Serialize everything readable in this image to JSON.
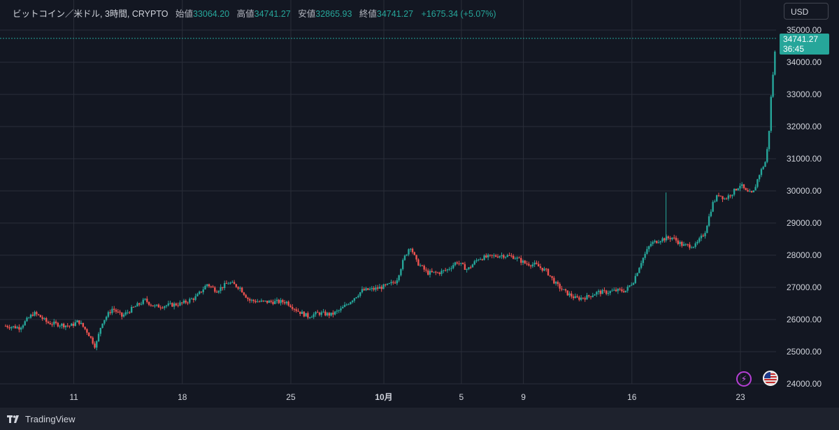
{
  "header": {
    "symbol": "ビットコイン／米ドル, 3時間, CRYPTO",
    "open_label": "始値",
    "open": "33064.20",
    "high_label": "高値",
    "high": "34741.27",
    "low_label": "安値",
    "low": "32865.93",
    "close_label": "終値",
    "close": "34741.27",
    "change": "+1675.34 (+5.07%)"
  },
  "currency_button": "USD",
  "last_price": {
    "price": "34741.27",
    "countdown": "36:45"
  },
  "colors": {
    "up": "#26a69a",
    "down": "#ef5350",
    "background": "#131722",
    "grid": "#2a2e39"
  },
  "branding": "TradingView",
  "icons": [
    "tradingview-logo-icon",
    "lightning-icon",
    "us-flag-icon"
  ],
  "chart_data": {
    "type": "candlestick",
    "title": "",
    "xlabel": "",
    "ylabel": "",
    "ylim": [
      24000,
      35000
    ],
    "yticks": [
      "35000.00",
      "34000.00",
      "33000.00",
      "32000.00",
      "31000.00",
      "30000.00",
      "29000.00",
      "28000.00",
      "27000.00",
      "26000.00",
      "25000.00",
      "24000.00"
    ],
    "xticks": [
      {
        "label": "11",
        "day": 11
      },
      {
        "label": "18",
        "day": 18
      },
      {
        "label": "25",
        "day": 25
      },
      {
        "label": "10月",
        "day": 31
      },
      {
        "label": "5",
        "day": 36
      },
      {
        "label": "9",
        "day": 40
      },
      {
        "label": "16",
        "day": 47
      },
      {
        "label": "23",
        "day": 54
      }
    ],
    "x_units": "days since 7 September (approx.)",
    "xlim": [
      6.6,
      56.3
    ],
    "grid": true,
    "last_price_line": 34741.27,
    "price_path": [
      [
        6.6,
        25800
      ],
      [
        7.5,
        25750
      ],
      [
        8.4,
        26200
      ],
      [
        8.8,
        26100
      ],
      [
        9.3,
        25900
      ],
      [
        10,
        25850
      ],
      [
        10.8,
        25800
      ],
      [
        11.3,
        25950
      ],
      [
        11.9,
        25600
      ],
      [
        12.4,
        25150
      ],
      [
        12.8,
        25900
      ],
      [
        13.5,
        26350
      ],
      [
        14.1,
        26100
      ],
      [
        14.8,
        26350
      ],
      [
        15.6,
        26600
      ],
      [
        16.2,
        26400
      ],
      [
        17.2,
        26450
      ],
      [
        18.0,
        26500
      ],
      [
        18.9,
        26700
      ],
      [
        19.6,
        27100
      ],
      [
        20.2,
        26900
      ],
      [
        21.0,
        27150
      ],
      [
        21.7,
        27000
      ],
      [
        22.3,
        26600
      ],
      [
        23.1,
        26550
      ],
      [
        23.9,
        26550
      ],
      [
        24.7,
        26550
      ],
      [
        25.5,
        26250
      ],
      [
        26.1,
        26100
      ],
      [
        26.8,
        26200
      ],
      [
        27.6,
        26150
      ],
      [
        28.2,
        26300
      ],
      [
        28.9,
        26600
      ],
      [
        29.6,
        26900
      ],
      [
        30.4,
        26950
      ],
      [
        31.2,
        27050
      ],
      [
        31.8,
        27200
      ],
      [
        32.3,
        27900
      ],
      [
        32.7,
        28300
      ],
      [
        33.1,
        27800
      ],
      [
        33.8,
        27450
      ],
      [
        34.5,
        27450
      ],
      [
        35.1,
        27550
      ],
      [
        35.7,
        27800
      ],
      [
        36.4,
        27550
      ],
      [
        37.1,
        27900
      ],
      [
        37.8,
        27950
      ],
      [
        38.6,
        28000
      ],
      [
        39.4,
        27950
      ],
      [
        40.1,
        27750
      ],
      [
        40.8,
        27700
      ],
      [
        41.5,
        27500
      ],
      [
        42.1,
        27100
      ],
      [
        42.7,
        26850
      ],
      [
        43.4,
        26650
      ],
      [
        44.1,
        26700
      ],
      [
        44.8,
        26850
      ],
      [
        45.4,
        26850
      ],
      [
        46.0,
        26900
      ],
      [
        46.6,
        26900
      ],
      [
        47.1,
        27200
      ],
      [
        47.6,
        27800
      ],
      [
        48.2,
        28350
      ],
      [
        48.9,
        28500
      ],
      [
        49.6,
        28550
      ],
      [
        50.3,
        28300
      ],
      [
        51.1,
        28300
      ],
      [
        51.7,
        28700
      ],
      [
        52.2,
        29600
      ],
      [
        52.6,
        29900
      ],
      [
        53.0,
        29750
      ],
      [
        53.5,
        29950
      ],
      [
        54.0,
        30200
      ],
      [
        54.4,
        29950
      ],
      [
        54.8,
        29900
      ],
      [
        55.2,
        30500
      ],
      [
        55.6,
        30900
      ],
      [
        55.8,
        31500
      ],
      [
        56.0,
        33100
      ],
      [
        56.3,
        34700
      ]
    ]
  }
}
